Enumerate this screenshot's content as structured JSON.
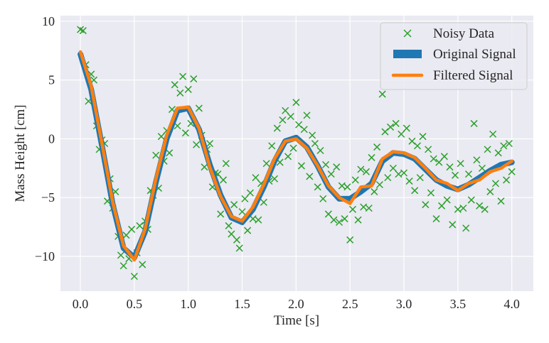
{
  "chart_data": {
    "type": "line",
    "title": "",
    "xlabel": "Time [s]",
    "ylabel": "Mass Height [cm]",
    "xlim": [
      -0.185,
      4.2
    ],
    "ylim": [
      -12.96,
      10.48
    ],
    "xticks": [
      "0.0",
      "0.5",
      "1.0",
      "1.5",
      "2.0",
      "2.5",
      "3.0",
      "3.5",
      "4.0"
    ],
    "xtick_values": [
      0,
      0.5,
      1,
      1.5,
      2,
      2.5,
      3,
      3.5,
      4
    ],
    "yticks": [
      "10",
      "5",
      "0",
      "−5",
      "−10"
    ],
    "ytick_values": [
      10,
      5,
      0,
      -5,
      -10
    ],
    "grid": true,
    "legend_position": "top-right",
    "series": [
      {
        "name": "Noisy Data",
        "style": "x-markers",
        "color": "#2ca02c",
        "x_start": 0,
        "x_step": 0.025,
        "values": [
          9.3,
          9.2,
          6.3,
          3.2,
          5.5,
          5.0,
          1.1,
          -0.9,
          -0.1,
          -0.4,
          -5.3,
          -3.4,
          -5.9,
          -4.5,
          -8.3,
          -9.9,
          -10.8,
          -8.2,
          -10.2,
          -7.7,
          -11.7,
          -9.7,
          -7.4,
          -10.7,
          -7.0,
          -7.7,
          -4.4,
          -4.8,
          -1.4,
          -4.2,
          0.2,
          -1.9,
          0.7,
          -1.2,
          2.5,
          4.6,
          1.1,
          3.9,
          5.3,
          0.5,
          4.2,
          1.3,
          5.1,
          -0.5,
          2.6,
          0.3,
          -2.4,
          -0.9,
          -0.4,
          -4.1,
          -2.9,
          -3.0,
          -6.4,
          -3.5,
          -2.1,
          -7.4,
          -8.1,
          -5.6,
          -8.6,
          -9.3,
          -6.2,
          -5.1,
          -7.8,
          -4.6,
          -6.8,
          -3.3,
          -6.9,
          -3.8,
          -5.4,
          -2.1,
          -3.6,
          -0.6,
          -3.4,
          0.9,
          -2.0,
          1.6,
          2.4,
          -1.5,
          1.9,
          -0.8,
          3.1,
          1.2,
          -2.3,
          0.8,
          2.0,
          -3.2,
          0.3,
          -0.4,
          -4.1,
          -1.0,
          -5.1,
          -2.2,
          -6.4,
          -3.0,
          -6.9,
          -2.4,
          -7.1,
          -4.0,
          -6.8,
          -4.1,
          -8.6,
          -6.0,
          -3.5,
          -6.9,
          -2.6,
          -5.8,
          -2.8,
          -5.9,
          -1.6,
          -4.5,
          -0.7,
          -3.9,
          3.8,
          0.6,
          -3.3,
          1.0,
          -2.5,
          1.3,
          -3.0,
          0.4,
          -2.9,
          0.9,
          -3.6,
          -0.2,
          -4.4,
          -0.6,
          -3.3,
          0.2,
          -5.6,
          -0.9,
          -4.6,
          -1.7,
          -6.8,
          -2.0,
          -5.7,
          -1.5,
          -5.2,
          -2.4,
          -7.3,
          -3.1,
          -6.0,
          -2.1,
          -5.9,
          -7.6,
          -3.0,
          -5.2,
          1.3,
          -1.8,
          -5.7,
          -2.5,
          -6.0,
          -0.9,
          -4.5,
          0.4,
          -3.8,
          -1.2,
          -5.3,
          -0.6,
          -3.5,
          -0.4,
          -2.8
        ]
      },
      {
        "name": "Original Signal",
        "style": "thick-line",
        "color": "#1f77b4",
        "x_start": 0,
        "x_step": 0.1,
        "values": [
          7.2,
          4.2,
          -0.6,
          -5.6,
          -9.3,
          -10.1,
          -7.9,
          -3.7,
          0.0,
          2.4,
          2.6,
          0.8,
          -2.2,
          -4.8,
          -6.7,
          -7.1,
          -6.0,
          -4.1,
          -1.9,
          -0.2,
          0.1,
          -0.7,
          -2.3,
          -4.1,
          -5.1,
          -5.1,
          -4.5,
          -3.8,
          -1.9,
          -1.2,
          -1.3,
          -1.7,
          -2.6,
          -3.5,
          -4.0,
          -4.3,
          -3.9,
          -3.3,
          -2.7,
          -2.2,
          -2.0
        ]
      },
      {
        "name": "Filtered Signal",
        "style": "line",
        "color": "#ff7f0e",
        "x_start": 0,
        "x_step": 0.1,
        "values": [
          7.4,
          4.5,
          -0.4,
          -5.4,
          -9.1,
          -10.3,
          -7.7,
          -3.4,
          0.3,
          2.6,
          2.7,
          0.9,
          -2.4,
          -4.9,
          -6.6,
          -7.0,
          -5.8,
          -3.9,
          -1.7,
          -0.2,
          0.0,
          -0.8,
          -2.3,
          -4.0,
          -5.0,
          -5.5,
          -4.1,
          -4.0,
          -1.7,
          -1.1,
          -1.2,
          -1.6,
          -2.5,
          -3.5,
          -3.8,
          -4.4,
          -3.8,
          -3.5,
          -2.8,
          -2.5,
          -1.9
        ]
      }
    ]
  }
}
